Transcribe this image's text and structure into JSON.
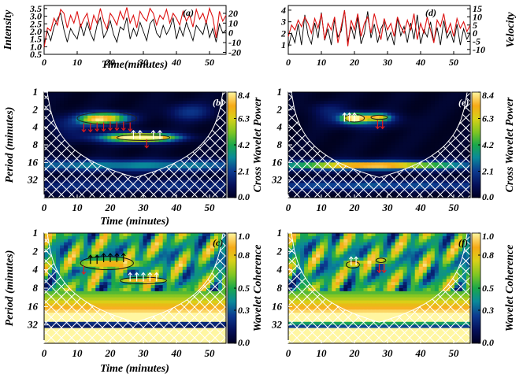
{
  "chart_data": [
    {
      "id": "a",
      "type": "line",
      "panel_label": "(a)",
      "xlabel": "Time(minutes)",
      "ylabel_left": "Intensity",
      "ylabel_right": "",
      "xlim": [
        0,
        55
      ],
      "ylim_left": [
        0.5,
        3.7
      ],
      "ylim_right": [
        -22,
        28
      ],
      "x_ticks": [
        "0",
        "10",
        "20",
        "30",
        "40",
        "50"
      ],
      "y_ticks_left": [
        "0.5",
        "1.0",
        "1.5",
        "2.0",
        "2.5",
        "3.0",
        "3.5"
      ],
      "y_ticks_right": [
        "-20",
        "-10",
        "0",
        "10",
        "20"
      ],
      "series": [
        {
          "axis": "left",
          "color": "#000000",
          "x": [
            0,
            1,
            2,
            3,
            4,
            5,
            6,
            7,
            8,
            9,
            10,
            11,
            12,
            13,
            14,
            15,
            16,
            17,
            18,
            19,
            20,
            21,
            22,
            23,
            24,
            25,
            26,
            27,
            28,
            29,
            30,
            31,
            32,
            33,
            34,
            35,
            36,
            37,
            38,
            39,
            40,
            41,
            42,
            43,
            44,
            45,
            46,
            47,
            48,
            49,
            50,
            51,
            52,
            53,
            54,
            55
          ],
          "values": [
            1.2,
            2.0,
            1.4,
            2.3,
            2.8,
            3.2,
            2.1,
            1.3,
            2.2,
            1.8,
            1.5,
            2.5,
            1.7,
            2.6,
            1.9,
            1.4,
            2.4,
            2.9,
            1.6,
            2.0,
            2.7,
            1.8,
            1.3,
            2.3,
            2.1,
            2.9,
            1.5,
            2.2,
            1.7,
            2.6,
            2.0,
            1.4,
            2.5,
            2.8,
            1.9,
            1.6,
            2.4,
            1.8,
            2.2,
            2.9,
            1.5,
            2.3,
            1.7,
            2.6,
            2.0,
            1.4,
            2.4,
            2.1,
            1.8,
            2.7,
            1.6,
            2.2,
            1.3,
            2.5,
            1.9,
            2.1
          ]
        },
        {
          "axis": "right",
          "color": "#dd1111",
          "x": [
            0,
            1,
            2,
            3,
            4,
            5,
            6,
            7,
            8,
            9,
            10,
            11,
            12,
            13,
            14,
            15,
            16,
            17,
            18,
            19,
            20,
            21,
            22,
            23,
            24,
            25,
            26,
            27,
            28,
            29,
            30,
            31,
            32,
            33,
            34,
            35,
            36,
            37,
            38,
            39,
            40,
            41,
            42,
            43,
            44,
            45,
            46,
            47,
            48,
            49,
            50,
            51,
            52,
            53,
            54,
            55
          ],
          "values": [
            -15,
            5,
            2,
            15,
            8,
            24,
            20,
            5,
            18,
            10,
            22,
            6,
            14,
            20,
            3,
            18,
            10,
            25,
            12,
            4,
            20,
            15,
            8,
            22,
            14,
            26,
            10,
            18,
            5,
            22,
            16,
            12,
            25,
            20,
            8,
            18,
            14,
            24,
            10,
            20,
            15,
            8,
            22,
            12,
            18,
            6,
            24,
            14,
            20,
            10,
            25,
            16,
            -5,
            22,
            12,
            18
          ]
        }
      ]
    },
    {
      "id": "d",
      "type": "line",
      "panel_label": "(d)",
      "xlabel": "",
      "ylabel_left": "",
      "ylabel_right": "Velocity",
      "xlim": [
        0,
        55
      ],
      "ylim_left": [
        0.2,
        4.4
      ],
      "ylim_right": [
        -13,
        17
      ],
      "x_ticks": [
        "0",
        "10",
        "20",
        "30",
        "40",
        "50"
      ],
      "y_ticks_left": [
        "1",
        "2",
        "3",
        "4"
      ],
      "y_ticks_right": [
        "-10",
        "-5",
        "0",
        "5",
        "10",
        "15"
      ],
      "series": [
        {
          "axis": "left",
          "color": "#000000",
          "x": [
            0,
            1,
            2,
            3,
            4,
            5,
            6,
            7,
            8,
            9,
            10,
            11,
            12,
            13,
            14,
            15,
            16,
            17,
            18,
            19,
            20,
            21,
            22,
            23,
            24,
            25,
            26,
            27,
            28,
            29,
            30,
            31,
            32,
            33,
            34,
            35,
            36,
            37,
            38,
            39,
            40,
            41,
            42,
            43,
            44,
            45,
            46,
            47,
            48,
            49,
            50,
            51,
            52,
            53,
            54,
            55
          ],
          "values": [
            0.8,
            2.0,
            1.2,
            2.8,
            1.0,
            3.6,
            1.8,
            1.1,
            2.9,
            1.6,
            3.8,
            1.4,
            2.4,
            1.0,
            3.2,
            1.7,
            2.2,
            4.0,
            1.3,
            2.6,
            1.5,
            3.4,
            1.1,
            2.0,
            3.9,
            1.6,
            2.8,
            1.2,
            2.4,
            3.0,
            1.4,
            2.1,
            1.0,
            3.3,
            1.8,
            2.6,
            1.2,
            2.9,
            1.5,
            3.6,
            1.1,
            2.3,
            1.7,
            3.0,
            1.3,
            2.5,
            1.0,
            3.1,
            1.6,
            2.2,
            1.2,
            2.8,
            1.0,
            2.4,
            1.5,
            2.1
          ]
        },
        {
          "axis": "right",
          "color": "#dd1111",
          "x": [
            0,
            1,
            2,
            3,
            4,
            5,
            6,
            7,
            8,
            9,
            10,
            11,
            12,
            13,
            14,
            15,
            16,
            17,
            18,
            19,
            20,
            21,
            22,
            23,
            24,
            25,
            26,
            27,
            28,
            29,
            30,
            31,
            32,
            33,
            34,
            35,
            36,
            37,
            38,
            39,
            40,
            41,
            42,
            43,
            44,
            45,
            46,
            47,
            48,
            49,
            50,
            51,
            52,
            53,
            54,
            55
          ],
          "values": [
            -2,
            5,
            2,
            8,
            4,
            10,
            6,
            0,
            9,
            3,
            12,
            -4,
            6,
            2,
            10,
            -6,
            4,
            14,
            -8,
            8,
            2,
            12,
            -2,
            6,
            10,
            0,
            12,
            4,
            -4,
            9,
            2,
            6,
            -2,
            10,
            4,
            0,
            8,
            2,
            12,
            -4,
            6,
            0,
            10,
            2,
            -6,
            8,
            4,
            12,
            0,
            6,
            -2,
            9,
            3,
            7,
            1,
            5
          ]
        }
      ]
    },
    {
      "id": "b",
      "type": "heatmap",
      "panel_label": "(b)",
      "xlabel": "Time (minutes)",
      "ylabel": "Period (minutes)",
      "colorbar_label": "Cross Wavelet Power",
      "colorbar_ticks": [
        "0.0",
        "2.1",
        "4.2",
        "6.3",
        "8.4"
      ],
      "zlim": [
        0.0,
        8.4
      ],
      "xlim": [
        0,
        55
      ],
      "x_ticks": [
        "0",
        "10",
        "20",
        "30",
        "40",
        "50"
      ],
      "y_ticks": [
        "1",
        "2",
        "4",
        "8",
        "16",
        "32"
      ],
      "ylim_period": [
        1,
        64
      ],
      "features": [
        {
          "t": 19,
          "p": 2.8,
          "st": 4.5,
          "sp": 0.22,
          "v": 6.5
        },
        {
          "t": 15,
          "p": 3.0,
          "st": 3,
          "sp": 0.2,
          "v": 3.2
        },
        {
          "t": 30,
          "p": 6.0,
          "st": 6,
          "sp": 0.12,
          "v": 8.4
        },
        {
          "t": 27,
          "p": 6.0,
          "st": 9,
          "sp": 0.22,
          "v": 3.5
        },
        {
          "t": 27,
          "p": 18,
          "st": 40,
          "sp": 0.22,
          "v": 3.0
        },
        {
          "t": 27,
          "p": 40,
          "st": 40,
          "sp": 0.25,
          "v": 1.5
        },
        {
          "t": 44,
          "p": 2.2,
          "st": 5,
          "sp": 0.35,
          "v": 1.6
        },
        {
          "t": 8,
          "p": 3.5,
          "st": 5,
          "sp": 0.4,
          "v": 1.2
        }
      ],
      "arrows": [
        {
          "t": 12,
          "p": 3.4,
          "color": "red",
          "dir": "down"
        },
        {
          "t": 14,
          "p": 3.4,
          "color": "red",
          "dir": "down"
        },
        {
          "t": 16,
          "p": 3.3,
          "color": "red",
          "dir": "down"
        },
        {
          "t": 18,
          "p": 3.3,
          "color": "red",
          "dir": "down"
        },
        {
          "t": 20,
          "p": 3.2,
          "color": "red",
          "dir": "down"
        },
        {
          "t": 22,
          "p": 3.2,
          "color": "red",
          "dir": "down"
        },
        {
          "t": 24,
          "p": 3.2,
          "color": "red",
          "dir": "down"
        },
        {
          "t": 26,
          "p": 3.3,
          "color": "red",
          "dir": "down"
        },
        {
          "t": 27,
          "p": 6.4,
          "color": "white",
          "dir": "up"
        },
        {
          "t": 29,
          "p": 6.4,
          "color": "white",
          "dir": "up"
        },
        {
          "t": 31,
          "p": 6.4,
          "color": "red",
          "dir": "down"
        },
        {
          "t": 33,
          "p": 6.4,
          "color": "white",
          "dir": "up"
        },
        {
          "t": 35,
          "p": 6.4,
          "color": "white",
          "dir": "up"
        }
      ],
      "contours": [
        {
          "t": 19,
          "p": 2.8,
          "rt": 9,
          "rp": 0.28
        },
        {
          "t": 30,
          "p": 6.0,
          "rt": 8,
          "rp": 0.14
        }
      ]
    },
    {
      "id": "e",
      "type": "heatmap",
      "panel_label": "(e)",
      "xlabel": "",
      "ylabel": "",
      "colorbar_label": "Cross Wavelet Power",
      "colorbar_ticks": [
        "0.0",
        "2.1",
        "4.2",
        "6.3",
        "8.4"
      ],
      "zlim": [
        0.0,
        8.4
      ],
      "xlim": [
        0,
        55
      ],
      "x_ticks": [
        "0",
        "10",
        "20",
        "30",
        "40",
        "50"
      ],
      "y_ticks": [
        "1",
        "2",
        "4",
        "8",
        "16",
        "32"
      ],
      "ylim_period": [
        1,
        64
      ],
      "features": [
        {
          "t": 20,
          "p": 2.8,
          "st": 2.5,
          "sp": 0.17,
          "v": 8.0
        },
        {
          "t": 27,
          "p": 2.7,
          "st": 2.5,
          "sp": 0.14,
          "v": 5.5
        },
        {
          "t": 25,
          "p": 18,
          "st": 14,
          "sp": 0.12,
          "v": 6.0
        },
        {
          "t": 25,
          "p": 18,
          "st": 35,
          "sp": 0.22,
          "v": 2.8
        },
        {
          "t": 25,
          "p": 40,
          "st": 40,
          "sp": 0.2,
          "v": 2.2
        },
        {
          "t": 23,
          "p": 3.0,
          "st": 7,
          "sp": 0.3,
          "v": 2.2
        },
        {
          "t": 12,
          "p": 2.0,
          "st": 4,
          "sp": 0.3,
          "v": 1.0
        }
      ],
      "arrows": [
        {
          "t": 17,
          "p": 3.2,
          "color": "white",
          "dir": "up"
        },
        {
          "t": 18.5,
          "p": 3.2,
          "color": "white",
          "dir": "up"
        },
        {
          "t": 20,
          "p": 3.2,
          "color": "white",
          "dir": "up"
        },
        {
          "t": 27,
          "p": 3.0,
          "color": "red",
          "dir": "down"
        },
        {
          "t": 28.5,
          "p": 3.0,
          "color": "red",
          "dir": "down"
        }
      ],
      "contours": [
        {
          "t": 20,
          "p": 2.8,
          "rt": 3,
          "rp": 0.18
        },
        {
          "t": 27.5,
          "p": 2.7,
          "rt": 2.5,
          "rp": 0.1
        }
      ]
    },
    {
      "id": "c",
      "type": "heatmap",
      "panel_label": "(c)",
      "xlabel": "Time (minutes)",
      "ylabel": "Period (minutes)",
      "colorbar_label": "Wavelet Coherence",
      "colorbar_ticks": [
        "0.0",
        "0.3",
        "0.5",
        "0.8",
        "1.0"
      ],
      "zlim": [
        0.0,
        1.0
      ],
      "xlim": [
        0,
        55
      ],
      "x_ticks": [
        "0",
        "10",
        "20",
        "30",
        "40",
        "50"
      ],
      "y_ticks": [
        "1",
        "2",
        "4",
        "8",
        "16",
        "32"
      ],
      "ylim_period": [
        1,
        64
      ],
      "features": [
        {
          "t": 20,
          "p": 3.2,
          "st": 10,
          "sp": 0.25,
          "v": 0.9
        },
        {
          "t": 30,
          "p": 6.0,
          "st": 8,
          "sp": 0.15,
          "v": 0.9
        },
        {
          "t": 27,
          "p": 20,
          "st": 60,
          "sp": 0.35,
          "v": 0.9
        }
      ],
      "arrows": [
        {
          "t": 12,
          "p": 3.4,
          "color": "red",
          "dir": "down"
        },
        {
          "t": 14,
          "p": 3.2,
          "color": "black",
          "dir": "up"
        },
        {
          "t": 16,
          "p": 3.2,
          "color": "black",
          "dir": "up"
        },
        {
          "t": 18,
          "p": 3.0,
          "color": "black",
          "dir": "up"
        },
        {
          "t": 20,
          "p": 3.0,
          "color": "black",
          "dir": "up"
        },
        {
          "t": 22,
          "p": 3.0,
          "color": "black",
          "dir": "up"
        },
        {
          "t": 24,
          "p": 3.0,
          "color": "black",
          "dir": "up"
        },
        {
          "t": 26,
          "p": 6.2,
          "color": "white",
          "dir": "up"
        },
        {
          "t": 28,
          "p": 6.2,
          "color": "white",
          "dir": "up"
        },
        {
          "t": 30,
          "p": 6.2,
          "color": "white",
          "dir": "up"
        },
        {
          "t": 32,
          "p": 6.2,
          "color": "white",
          "dir": "up"
        },
        {
          "t": 34,
          "p": 6.2,
          "color": "white",
          "dir": "up"
        }
      ],
      "contours": [
        {
          "t": 19,
          "p": 3.1,
          "rt": 8,
          "rp": 0.3
        },
        {
          "t": 30,
          "p": 6.0,
          "rt": 7,
          "rp": 0.15
        }
      ]
    },
    {
      "id": "f",
      "type": "heatmap",
      "panel_label": "(f)",
      "xlabel": "",
      "ylabel": "",
      "colorbar_label": "Wavelet Coherence",
      "colorbar_ticks": [
        "0.0",
        "0.3",
        "0.5",
        "0.8",
        "1.0"
      ],
      "zlim": [
        0.0,
        1.0
      ],
      "xlim": [
        0,
        55
      ],
      "x_ticks": [
        "0",
        "10",
        "20",
        "30",
        "40",
        "50"
      ],
      "y_ticks": [
        "1",
        "2",
        "4",
        "8",
        "16",
        "32"
      ],
      "ylim_period": [
        1,
        64
      ],
      "features": [
        {
          "t": 20,
          "p": 3.1,
          "st": 3,
          "sp": 0.2,
          "v": 0.9
        },
        {
          "t": 28,
          "p": 2.8,
          "st": 2,
          "sp": 0.15,
          "v": 0.9
        },
        {
          "t": 27,
          "p": 22,
          "st": 60,
          "sp": 0.4,
          "v": 0.95
        },
        {
          "t": 28,
          "p": 12,
          "st": 30,
          "sp": 0.15,
          "v": 0.5
        }
      ],
      "arrows": [
        {
          "t": 19,
          "p": 3.4,
          "color": "white",
          "dir": "up"
        },
        {
          "t": 20.5,
          "p": 3.4,
          "color": "white",
          "dir": "up"
        },
        {
          "t": 27.5,
          "p": 3.2,
          "color": "red",
          "dir": "down"
        },
        {
          "t": 29,
          "p": 3.2,
          "color": "red",
          "dir": "down"
        }
      ],
      "contours": [
        {
          "t": 19.5,
          "p": 3.3,
          "rt": 2,
          "rp": 0.15
        },
        {
          "t": 28,
          "p": 2.8,
          "rt": 1.5,
          "rp": 0.1
        }
      ]
    }
  ]
}
